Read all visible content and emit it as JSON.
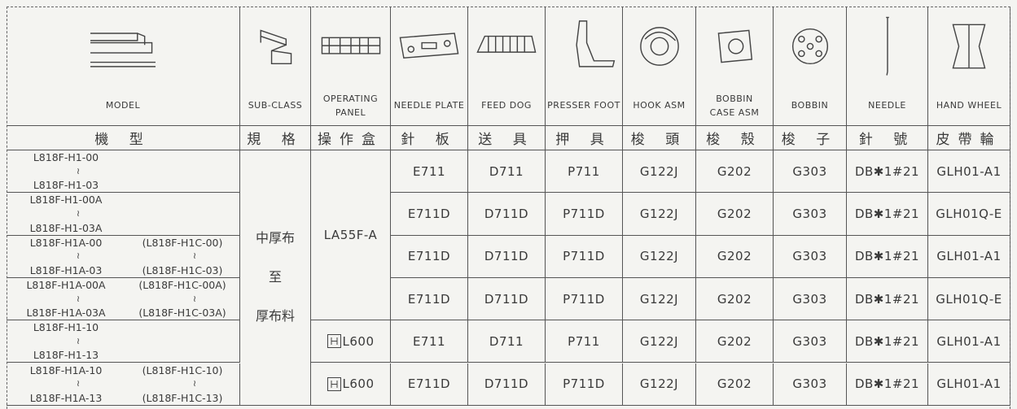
{
  "header": {
    "columns": [
      {
        "en": [
          "MODEL"
        ],
        "zh": "機 型"
      },
      {
        "en": [
          "SUB-CLASS"
        ],
        "zh": "規 格"
      },
      {
        "en": [
          "OPERATING",
          "PANEL"
        ],
        "zh": "操作盒"
      },
      {
        "en": [
          "NEEDLE PLATE"
        ],
        "zh": "針 板"
      },
      {
        "en": [
          "FEED DOG"
        ],
        "zh": "送 具"
      },
      {
        "en": [
          "PRESSER FOOT"
        ],
        "zh": "押 具"
      },
      {
        "en": [
          "HOOK ASM"
        ],
        "zh": "梭 頭"
      },
      {
        "en": [
          "BOBBIN",
          "CASE ASM"
        ],
        "zh": "梭 殼"
      },
      {
        "en": [
          "BOBBIN"
        ],
        "zh": "梭 子"
      },
      {
        "en": [
          "NEEDLE"
        ],
        "zh": "針 號"
      },
      {
        "en": [
          "HAND WHEEL"
        ],
        "zh": "皮帶輪"
      }
    ]
  },
  "sub_class": [
    "中厚布",
    "至",
    "厚布料"
  ],
  "operating_panel": [
    "LA55F-A",
    "L600",
    "L600"
  ],
  "rows": [
    {
      "model": [
        "L818F-H1-00",
        "≀",
        "L818F-H1-03"
      ],
      "parts": [
        "E711",
        "D711",
        "P711",
        "G122J",
        "G202",
        "G303",
        "DB✱1#21",
        "GLH01-A1"
      ]
    },
    {
      "model": [
        "L818F-H1-00A",
        "≀",
        "L818F-H1-03A"
      ],
      "parts": [
        "E711D",
        "D711D",
        "P711D",
        "G122J",
        "G202",
        "G303",
        "DB✱1#21",
        "GLH01Q-E"
      ]
    },
    {
      "model": [
        "L818F-H1A-00",
        "≀",
        "L818F-H1A-03"
      ],
      "alt": [
        "(L818F-H1C-00)",
        "≀",
        "(L818F-H1C-03)"
      ],
      "parts": [
        "E711D",
        "D711D",
        "P711D",
        "G122J",
        "G202",
        "G303",
        "DB✱1#21",
        "GLH01-A1"
      ]
    },
    {
      "model": [
        "L818F-H1A-00A",
        "≀",
        "L818F-H1A-03A"
      ],
      "alt": [
        "(L818F-H1C-00A)",
        "≀",
        "(L818F-H1C-03A)"
      ],
      "parts": [
        "E711D",
        "D711D",
        "P711D",
        "G122J",
        "G202",
        "G303",
        "DB✱1#21",
        "GLH01Q-E"
      ]
    },
    {
      "model": [
        "L818F-H1-10",
        "≀",
        "L818F-H1-13"
      ],
      "parts": [
        "E711",
        "D711",
        "P711",
        "G122J",
        "G202",
        "G303",
        "DB✱1#21",
        "GLH01-A1"
      ]
    },
    {
      "model": [
        "L818F-H1A-10",
        "≀",
        "L818F-H1A-13"
      ],
      "alt": [
        "(L818F-H1C-10)",
        "≀",
        "(L818F-H1C-13)"
      ],
      "parts": [
        "E711D",
        "D711D",
        "P711D",
        "G122J",
        "G202",
        "G303",
        "DB✱1#21",
        "GLH01-A1"
      ]
    }
  ]
}
